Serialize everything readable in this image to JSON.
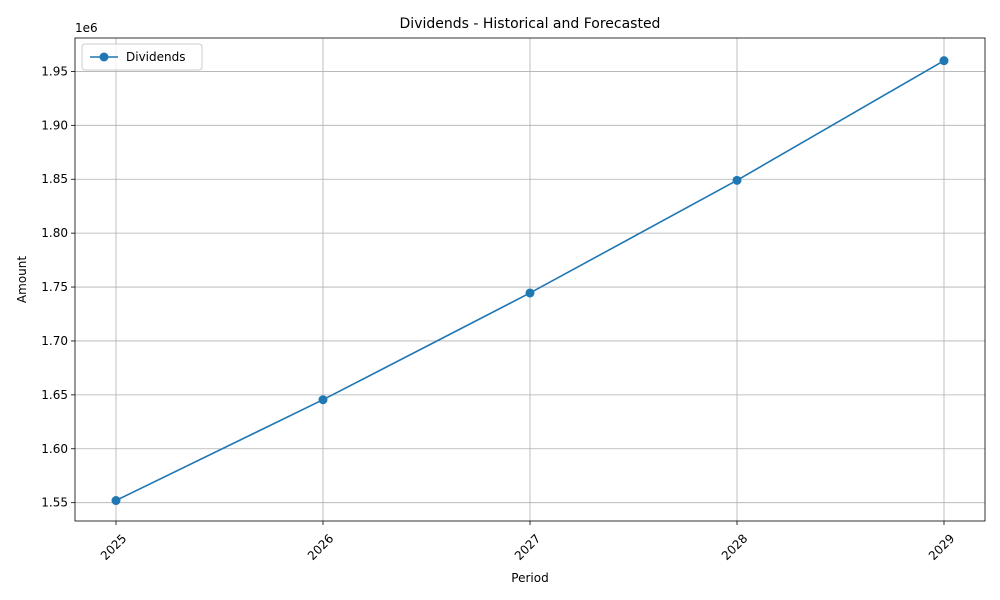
{
  "chart_data": {
    "type": "line",
    "title": "Dividends - Historical and Forecasted",
    "xlabel": "Period",
    "ylabel": "Amount",
    "y_offset_label": "1e6",
    "x": [
      "2025",
      "2026",
      "2027",
      "2028",
      "2029"
    ],
    "series": [
      {
        "name": "Dividends",
        "values": [
          1552000,
          1645500,
          1744500,
          1849000,
          1960000
        ],
        "color": "#1f77b4"
      }
    ],
    "ylim": [
      1533000,
      1981000
    ],
    "yticks": [
      1550000,
      1600000,
      1650000,
      1700000,
      1750000,
      1800000,
      1850000,
      1900000,
      1950000
    ],
    "ytick_labels": [
      "1.55",
      "1.60",
      "1.65",
      "1.70",
      "1.75",
      "1.80",
      "1.85",
      "1.90",
      "1.95"
    ],
    "grid": true,
    "legend_position": "top-left",
    "x_tick_rotation_deg": 45
  }
}
